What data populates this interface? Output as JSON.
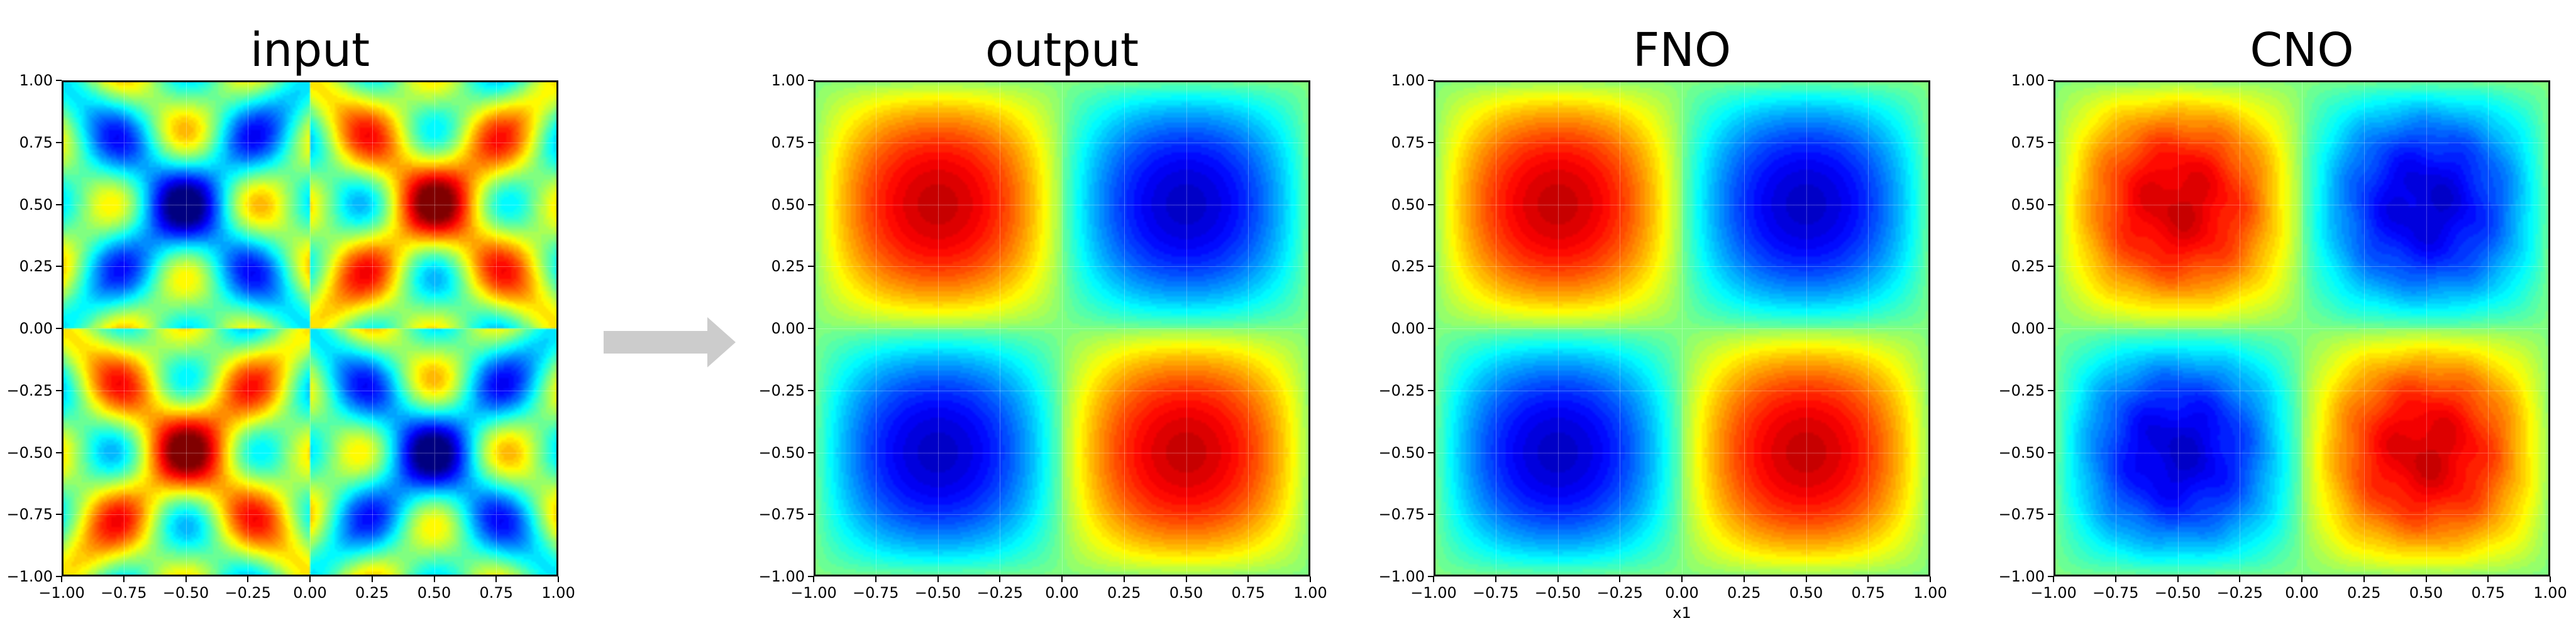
{
  "chart_data": [
    {
      "type": "heatmap",
      "title": "input",
      "colormap": "jet",
      "x_ticks": [
        "−1.00",
        "−0.75",
        "−0.50",
        "−0.25",
        "0.00",
        "0.25",
        "0.50",
        "0.75",
        "1.00"
      ],
      "y_ticks": [
        "1.00",
        "0.75",
        "0.50",
        "0.25",
        "0.00",
        "−0.25",
        "−0.50",
        "−0.75",
        "−1.00"
      ],
      "xlim": [
        -1,
        1
      ],
      "ylim": [
        -1,
        1
      ],
      "xlabel": "",
      "grid": true,
      "field": "multi-frequency oscillatory pattern (sin(2πx)sin(2πy) with higher modes)"
    },
    {
      "type": "heatmap",
      "title": "output",
      "colormap": "jet",
      "x_ticks": [
        "−1.00",
        "−0.75",
        "−0.50",
        "−0.25",
        "0.00",
        "0.25",
        "0.50",
        "0.75",
        "1.00"
      ],
      "y_ticks": [
        "1.00",
        "0.75",
        "0.50",
        "0.25",
        "0.00",
        "−0.25",
        "−0.50",
        "−0.75",
        "−1.00"
      ],
      "xlim": [
        -1,
        1
      ],
      "ylim": [
        -1,
        1
      ],
      "xlabel": "",
      "grid": true,
      "peaks": [
        {
          "x": -0.5,
          "y": 0.5,
          "sign": "max"
        },
        {
          "x": 0.5,
          "y": 0.5,
          "sign": "min"
        },
        {
          "x": -0.5,
          "y": -0.5,
          "sign": "min"
        },
        {
          "x": 0.5,
          "y": -0.5,
          "sign": "max"
        }
      ]
    },
    {
      "type": "heatmap",
      "title": "FNO",
      "colormap": "jet",
      "x_ticks": [
        "−1.00",
        "−0.75",
        "−0.50",
        "−0.25",
        "0.00",
        "0.25",
        "0.50",
        "0.75",
        "1.00"
      ],
      "y_ticks": [
        "1.00",
        "0.75",
        "0.50",
        "0.25",
        "0.00",
        "−0.25",
        "−0.50",
        "−0.75",
        "−1.00"
      ],
      "xlim": [
        -1,
        1
      ],
      "ylim": [
        -1,
        1
      ],
      "xlabel": "x1",
      "grid": true,
      "peaks": [
        {
          "x": -0.5,
          "y": 0.5,
          "sign": "max"
        },
        {
          "x": 0.5,
          "y": 0.5,
          "sign": "min"
        },
        {
          "x": -0.5,
          "y": -0.5,
          "sign": "min"
        },
        {
          "x": 0.5,
          "y": -0.5,
          "sign": "max"
        }
      ]
    },
    {
      "type": "heatmap",
      "title": "CNO",
      "colormap": "jet",
      "x_ticks": [
        "−1.00",
        "−0.75",
        "−0.50",
        "−0.25",
        "0.00",
        "0.25",
        "0.50",
        "0.75",
        "1.00"
      ],
      "y_ticks": [
        "1.00",
        "0.75",
        "0.50",
        "0.25",
        "0.00",
        "−0.25",
        "−0.50",
        "−0.75",
        "−1.00"
      ],
      "xlim": [
        -1,
        1
      ],
      "ylim": [
        -1,
        1
      ],
      "xlabel": "",
      "grid": true,
      "peaks": [
        {
          "x": -0.5,
          "y": 0.5,
          "sign": "max"
        },
        {
          "x": 0.5,
          "y": 0.5,
          "sign": "min"
        },
        {
          "x": -0.5,
          "y": -0.5,
          "sign": "min"
        },
        {
          "x": 0.5,
          "y": -0.5,
          "sign": "max"
        }
      ]
    }
  ],
  "arrow_icon": "right-arrow-icon",
  "arrow_color": "#cccccc"
}
